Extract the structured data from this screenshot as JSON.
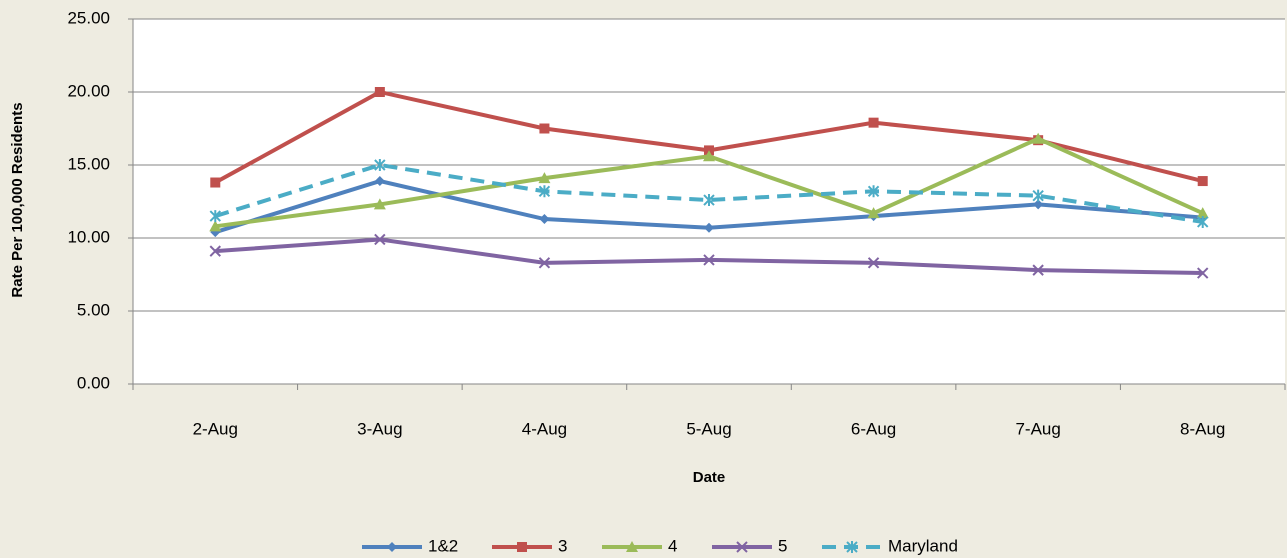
{
  "chart_data": {
    "type": "line",
    "y_label": "Rate Per 100,000 Residents",
    "x_label": "Date",
    "categories": [
      "2-Aug",
      "3-Aug",
      "4-Aug",
      "5-Aug",
      "6-Aug",
      "7-Aug",
      "8-Aug"
    ],
    "series": [
      {
        "name": "1&2",
        "color": "#4f81bd",
        "marker": "diamond",
        "dash": false,
        "values": [
          10.4,
          13.9,
          11.3,
          10.7,
          11.5,
          12.3,
          11.4
        ]
      },
      {
        "name": "3",
        "color": "#c0504d",
        "marker": "square",
        "dash": false,
        "values": [
          13.8,
          20.0,
          17.5,
          16.0,
          17.9,
          16.7,
          13.9
        ]
      },
      {
        "name": "4",
        "color": "#9bbb59",
        "marker": "triangle",
        "dash": false,
        "values": [
          10.8,
          12.3,
          14.1,
          15.6,
          11.7,
          16.8,
          11.7
        ]
      },
      {
        "name": "5",
        "color": "#8064a2",
        "marker": "x",
        "dash": false,
        "values": [
          9.1,
          9.9,
          8.3,
          8.5,
          8.3,
          7.8,
          7.6
        ]
      },
      {
        "name": "Maryland",
        "color": "#4bacc6",
        "marker": "star",
        "dash": true,
        "values": [
          11.5,
          15.0,
          13.2,
          12.6,
          13.2,
          12.9,
          11.1
        ]
      }
    ],
    "ylim": [
      0,
      25
    ],
    "yticks": [
      {
        "value": 0,
        "label": "0.00"
      },
      {
        "value": 5,
        "label": "5.00"
      },
      {
        "value": 10,
        "label": "10.00"
      },
      {
        "value": 15,
        "label": "15.00"
      },
      {
        "value": 20,
        "label": "20.00"
      },
      {
        "value": 25,
        "label": "25.00"
      }
    ],
    "grid": true,
    "legend": "bottom"
  }
}
